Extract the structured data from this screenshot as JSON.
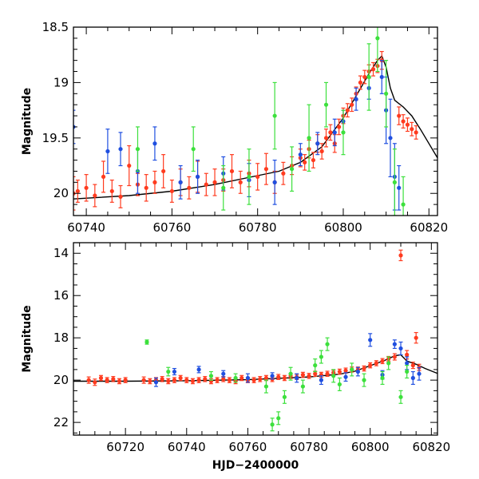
{
  "chart_data": [
    {
      "type": "scatter",
      "panel": "top",
      "xlabel": "",
      "ylabel": "Magnitude",
      "xlim": [
        60737,
        60822
      ],
      "ylim": [
        20.2,
        18.5
      ],
      "y_inverted": true,
      "grid": false,
      "x_ticks": [
        "60740",
        "60760",
        "60780",
        "60800",
        "60820"
      ],
      "y_ticks": [
        "18.5",
        "19",
        "19.5",
        "20"
      ],
      "model_curve": {
        "x": [
          60737,
          60750,
          60760,
          60770,
          60780,
          60785,
          60790,
          60795,
          60800,
          60803,
          60806,
          60808,
          60809,
          60810,
          60811,
          60812,
          60814,
          60816,
          60818,
          60820,
          60822
        ],
        "y": [
          20.05,
          20.02,
          19.98,
          19.92,
          19.84,
          19.8,
          19.72,
          19.58,
          19.32,
          19.12,
          18.92,
          18.8,
          18.76,
          18.86,
          19.05,
          19.16,
          19.22,
          19.3,
          19.42,
          19.55,
          19.68
        ]
      },
      "series": [
        {
          "color": "#ff3b1f",
          "x": [
            60737,
            60738,
            60740,
            60742,
            60744,
            60746,
            60748,
            60750,
            60752,
            60754,
            60756,
            60758,
            60760,
            60762,
            60764,
            60766,
            60768,
            60770,
            60772,
            60774,
            60776,
            60778,
            60780,
            60782,
            60784,
            60786,
            60788,
            60790,
            60791,
            60792,
            60793,
            60794,
            60795,
            60796,
            60797,
            60798,
            60799,
            60800,
            60801,
            60802,
            60803,
            60804,
            60805,
            60806,
            60807,
            60808,
            60809,
            60813,
            60814,
            60815,
            60816,
            60817
          ],
          "y": [
            20.0,
            19.98,
            19.95,
            20.02,
            19.85,
            19.98,
            20.03,
            19.75,
            19.92,
            19.95,
            19.9,
            19.8,
            19.98,
            19.9,
            19.95,
            19.85,
            19.92,
            19.9,
            19.88,
            19.8,
            19.9,
            19.82,
            19.85,
            19.78,
            19.9,
            19.82,
            19.75,
            19.68,
            19.72,
            19.6,
            19.7,
            19.55,
            19.62,
            19.5,
            19.45,
            19.55,
            19.4,
            19.3,
            19.25,
            19.2,
            19.1,
            19.0,
            18.95,
            18.9,
            18.88,
            18.85,
            18.8,
            19.3,
            19.35,
            19.38,
            19.42,
            19.45
          ],
          "err": [
            0.15,
            0.1,
            0.12,
            0.1,
            0.14,
            0.1,
            0.1,
            0.18,
            0.1,
            0.12,
            0.1,
            0.15,
            0.1,
            0.12,
            0.1,
            0.14,
            0.1,
            0.12,
            0.1,
            0.15,
            0.1,
            0.12,
            0.12,
            0.14,
            0.1,
            0.1,
            0.08,
            0.08,
            0.07,
            0.08,
            0.07,
            0.08,
            0.07,
            0.08,
            0.07,
            0.08,
            0.07,
            0.07,
            0.06,
            0.06,
            0.06,
            0.06,
            0.06,
            0.06,
            0.06,
            0.06,
            0.08,
            0.08,
            0.06,
            0.06,
            0.06,
            0.06
          ]
        },
        {
          "color": "#1f4fe0",
          "x": [
            60737,
            60745,
            60748,
            60752,
            60756,
            60762,
            60766,
            60772,
            60778,
            60784,
            60790,
            60794,
            60798,
            60800,
            60803,
            60806,
            60809,
            60810,
            60811,
            60812,
            60813
          ],
          "y": [
            19.4,
            19.62,
            19.6,
            19.8,
            19.55,
            19.9,
            19.85,
            19.82,
            19.88,
            19.9,
            19.65,
            19.55,
            19.45,
            19.35,
            19.15,
            19.05,
            18.95,
            19.25,
            19.5,
            19.85,
            19.95
          ],
          "err": [
            0.15,
            0.2,
            0.15,
            0.2,
            0.15,
            0.15,
            0.15,
            0.15,
            0.15,
            0.2,
            0.1,
            0.1,
            0.12,
            0.1,
            0.1,
            0.1,
            0.15,
            0.3,
            0.35,
            0.3,
            0.2
          ]
        },
        {
          "color": "#3ce03c",
          "x": [
            60752,
            60765,
            60772,
            60778,
            60784,
            60788,
            60792,
            60796,
            60800,
            60806,
            60808,
            60810,
            60812,
            60814
          ],
          "y": [
            19.6,
            19.6,
            19.95,
            19.85,
            19.3,
            19.78,
            19.5,
            19.2,
            19.45,
            18.95,
            18.6,
            19.1,
            19.9,
            20.1
          ],
          "err": [
            0.2,
            0.2,
            0.2,
            0.25,
            0.3,
            0.2,
            0.3,
            0.2,
            0.2,
            0.3,
            0.3,
            0.3,
            0.3,
            0.25
          ]
        }
      ]
    },
    {
      "type": "scatter",
      "panel": "bottom",
      "xlabel": "HJD−2400000",
      "ylabel": "Magnitude",
      "xlim": [
        60703,
        60822
      ],
      "ylim": [
        22.6,
        13.5
      ],
      "y_inverted": true,
      "grid": false,
      "x_ticks": [
        "60720",
        "60740",
        "60760",
        "60780",
        "60800",
        "60820"
      ],
      "y_ticks": [
        "14",
        "16",
        "18",
        "20",
        "22"
      ],
      "model_curve": {
        "x": [
          60703,
          60720,
          60740,
          60760,
          60780,
          60790,
          60795,
          60800,
          60805,
          60808,
          60810,
          60812,
          60815,
          60818,
          60822
        ],
        "y": [
          20.05,
          20.05,
          20.03,
          19.98,
          19.85,
          19.72,
          19.58,
          19.32,
          19.05,
          18.85,
          18.8,
          19.1,
          19.25,
          19.45,
          19.68
        ]
      },
      "series": [
        {
          "color": "#ff3b1f",
          "x": [
            60708,
            60710,
            60712,
            60714,
            60716,
            60718,
            60720,
            60726,
            60728,
            60730,
            60732,
            60734,
            60736,
            60738,
            60740,
            60742,
            60744,
            60746,
            60748,
            60750,
            60752,
            60754,
            60756,
            60758,
            60760,
            60762,
            60764,
            60766,
            60768,
            60770,
            60772,
            60774,
            60776,
            60778,
            60780,
            60782,
            60784,
            60786,
            60788,
            60790,
            60792,
            60794,
            60796,
            60798,
            60800,
            60802,
            60804,
            60806,
            60808,
            60810,
            60812,
            60814,
            60815,
            60816
          ],
          "y": [
            20.0,
            20.1,
            19.9,
            20.0,
            19.95,
            20.05,
            20.0,
            20.0,
            20.05,
            20.0,
            19.95,
            20.05,
            20.0,
            19.9,
            20.0,
            20.05,
            20.0,
            19.95,
            20.05,
            20.0,
            19.95,
            20.0,
            20.05,
            19.9,
            20.0,
            20.0,
            19.95,
            19.9,
            19.95,
            19.85,
            19.9,
            19.8,
            19.85,
            19.75,
            19.8,
            19.7,
            19.75,
            19.7,
            19.65,
            19.6,
            19.55,
            19.5,
            19.5,
            19.45,
            19.3,
            19.2,
            19.1,
            19.0,
            18.9,
            14.1,
            18.8,
            19.3,
            18.0,
            19.4
          ],
          "err": [
            0.15,
            0.15,
            0.12,
            0.12,
            0.12,
            0.12,
            0.12,
            0.15,
            0.12,
            0.12,
            0.12,
            0.12,
            0.12,
            0.12,
            0.12,
            0.12,
            0.12,
            0.12,
            0.12,
            0.12,
            0.12,
            0.12,
            0.12,
            0.12,
            0.12,
            0.12,
            0.12,
            0.12,
            0.12,
            0.12,
            0.12,
            0.12,
            0.12,
            0.12,
            0.12,
            0.12,
            0.12,
            0.12,
            0.12,
            0.12,
            0.12,
            0.12,
            0.12,
            0.12,
            0.12,
            0.12,
            0.12,
            0.12,
            0.15,
            0.25,
            0.2,
            0.15,
            0.25,
            0.15
          ]
        },
        {
          "color": "#1f4fe0",
          "x": [
            60730,
            60736,
            60744,
            60752,
            60760,
            60768,
            60776,
            60784,
            60792,
            60796,
            60800,
            60804,
            60808,
            60810,
            60812,
            60814,
            60816
          ],
          "y": [
            20.1,
            19.6,
            19.5,
            19.7,
            19.9,
            19.8,
            19.9,
            20.0,
            19.85,
            19.6,
            18.1,
            19.75,
            18.3,
            18.5,
            19.2,
            19.9,
            19.7
          ],
          "err": [
            0.2,
            0.15,
            0.15,
            0.15,
            0.2,
            0.15,
            0.2,
            0.2,
            0.2,
            0.2,
            0.3,
            0.2,
            0.2,
            0.3,
            0.3,
            0.3,
            0.3
          ]
        },
        {
          "color": "#3ce03c",
          "x": [
            60727,
            60734,
            60748,
            60756,
            60766,
            60768,
            60770,
            60772,
            60774,
            60778,
            60782,
            60784,
            60786,
            60788,
            60790,
            60794,
            60798,
            60804,
            60806,
            60810,
            60812
          ],
          "y": [
            18.2,
            19.6,
            19.8,
            19.9,
            20.3,
            22.1,
            21.8,
            20.8,
            19.7,
            20.3,
            19.3,
            18.9,
            18.3,
            19.8,
            20.2,
            19.5,
            20.0,
            19.9,
            19.2,
            20.8,
            19.6
          ],
          "err": [
            0.1,
            0.2,
            0.2,
            0.2,
            0.3,
            0.3,
            0.3,
            0.3,
            0.3,
            0.3,
            0.3,
            0.3,
            0.3,
            0.3,
            0.3,
            0.3,
            0.3,
            0.3,
            0.3,
            0.3,
            0.3
          ]
        }
      ]
    }
  ]
}
